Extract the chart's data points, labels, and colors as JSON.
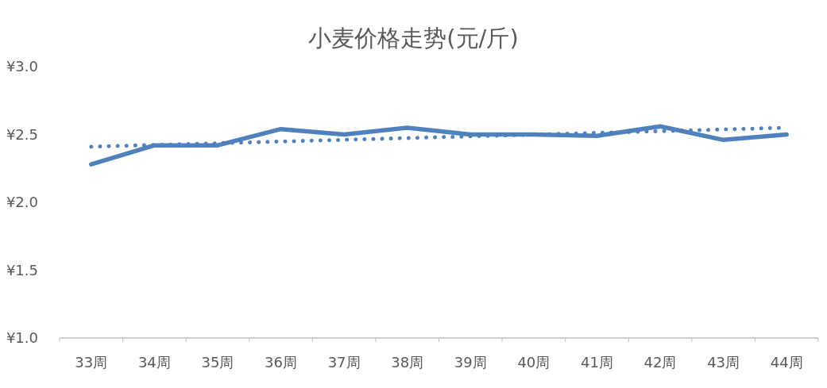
{
  "chart_data": {
    "type": "line",
    "title": "小麦价格走势(元/斤)",
    "categories": [
      "33周",
      "34周",
      "35周",
      "36周",
      "37周",
      "38周",
      "39周",
      "40周",
      "41周",
      "42周",
      "43周",
      "44周"
    ],
    "series": [
      {
        "color": "#4f81bd",
        "line_style": "solid",
        "values": [
          2.28,
          2.42,
          2.42,
          2.54,
          2.5,
          2.55,
          2.5,
          2.5,
          2.49,
          2.56,
          2.46,
          2.5
        ]
      },
      {
        "type": "line",
        "color": "#4f81bd",
        "line_style": "dotted",
        "x": [
          "33周",
          "44周"
        ],
        "values": [
          2.41,
          2.55
        ]
      }
    ],
    "ylim": [
      1,
      3
    ],
    "yticks": [
      {
        "value": 1,
        "label": "¥1.0"
      },
      {
        "value": 1.5,
        "label": "¥1.5"
      },
      {
        "value": 2,
        "label": "¥2.0"
      },
      {
        "value": 2.5,
        "label": "¥2.5"
      },
      {
        "value": 3,
        "label": "¥3.0"
      }
    ],
    "grid": false
  }
}
